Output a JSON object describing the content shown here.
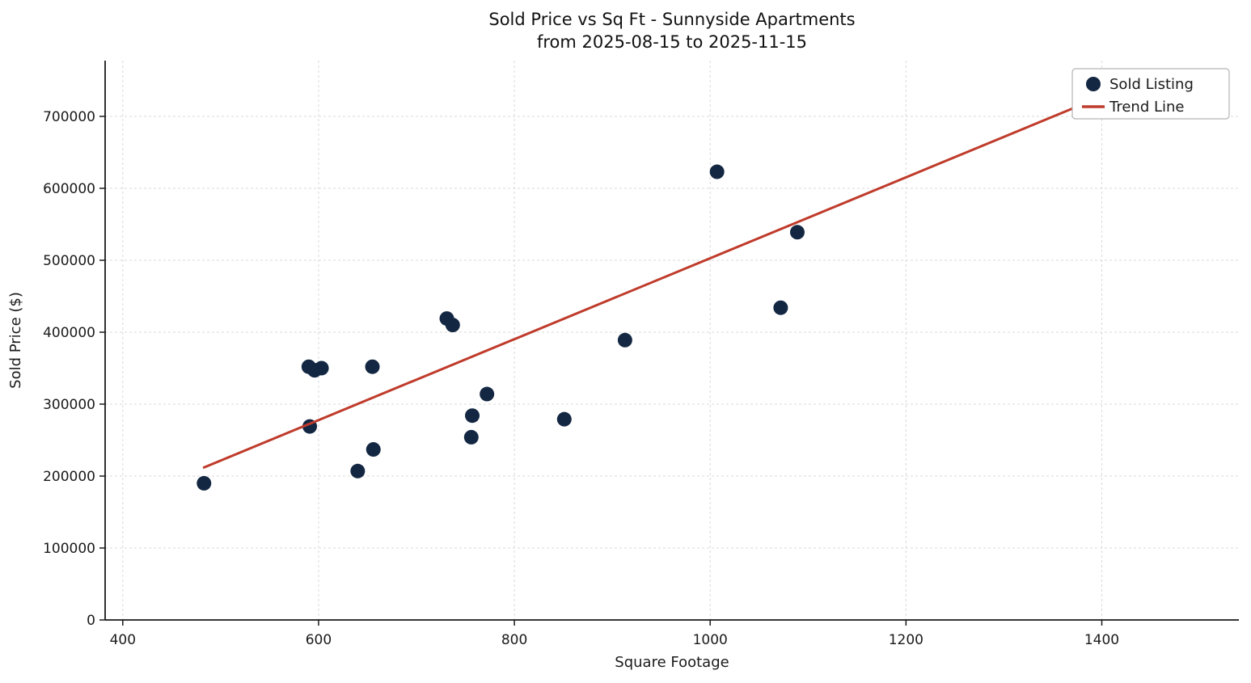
{
  "chart_data": {
    "type": "scatter",
    "title_line1": "Sold Price vs Sq Ft - Sunnyside Apartments",
    "title_line2": "from 2025-08-15 to 2025-11-15",
    "xlabel": "Square Footage",
    "ylabel": "Sold Price ($)",
    "xlim": [
      382,
      1540
    ],
    "ylim": [
      0,
      777500
    ],
    "x_ticks": [
      400,
      600,
      800,
      1000,
      1200,
      1400
    ],
    "y_ticks": [
      0,
      100000,
      200000,
      300000,
      400000,
      500000,
      600000,
      700000
    ],
    "grid": true,
    "colors": {
      "point": "#132742",
      "trend": "#bf3b2b",
      "grid": "#d9d9d9",
      "spine": "#1a1a1a",
      "text": "#1a1a1a",
      "legend_border": "#b3b3b3"
    },
    "series": [
      {
        "name": "Sold Listing",
        "kind": "scatter",
        "points": [
          [
            483,
            190000
          ],
          [
            590,
            352000
          ],
          [
            596,
            347000
          ],
          [
            603,
            350000
          ],
          [
            591,
            269000
          ],
          [
            640,
            207000
          ],
          [
            656,
            237000
          ],
          [
            655,
            352000
          ],
          [
            731,
            419000
          ],
          [
            737,
            410000
          ],
          [
            757,
            284000
          ],
          [
            756,
            254000
          ],
          [
            772,
            314000
          ],
          [
            851,
            279000
          ],
          [
            913,
            389000
          ],
          [
            1007,
            623000
          ],
          [
            1072,
            434000
          ],
          [
            1089,
            539000
          ]
        ]
      },
      {
        "name": "Trend Line",
        "kind": "line",
        "points": [
          [
            483,
            212000
          ],
          [
            1452,
            757000
          ]
        ]
      }
    ],
    "legend": {
      "position": "upper right",
      "entries": [
        "Sold Listing",
        "Trend Line"
      ]
    }
  }
}
